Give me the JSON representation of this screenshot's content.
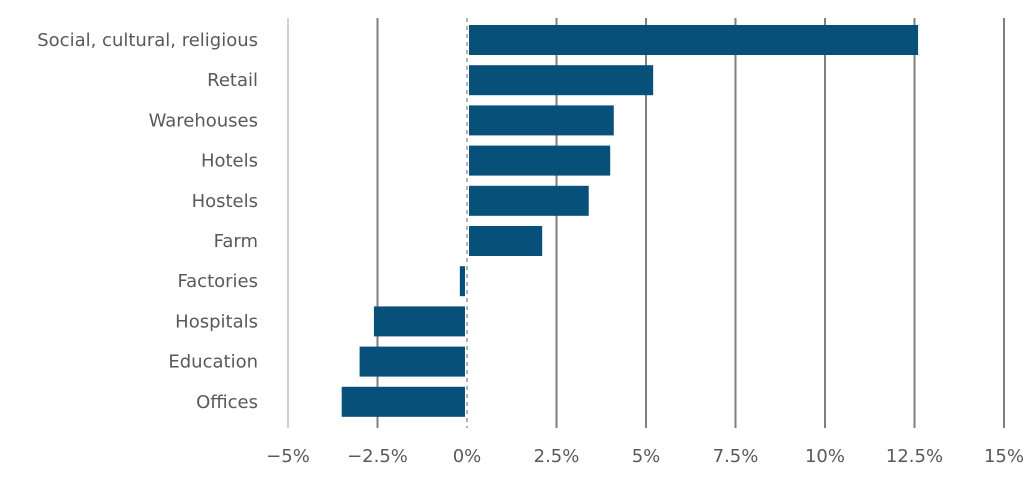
{
  "chart_data": {
    "type": "bar",
    "orientation": "horizontal",
    "categories": [
      "Social, cultural, religious",
      "Retail",
      "Warehouses",
      "Hotels",
      "Hostels",
      "Farm",
      "Factories",
      "Hospitals",
      "Education",
      "Offices"
    ],
    "values": [
      12.6,
      5.2,
      4.1,
      4.0,
      3.4,
      2.1,
      -0.2,
      -2.6,
      -3.0,
      -3.5
    ],
    "xlim": [
      -5,
      15
    ],
    "xticks": [
      -5,
      -2.5,
      0,
      2.5,
      5,
      7.5,
      10,
      12.5,
      15
    ],
    "xtick_labels": [
      "−5%",
      "−2.5%",
      "0%",
      "2.5%",
      "5%",
      "7.5%",
      "10%",
      "12.5%",
      "15%"
    ],
    "title": "",
    "xlabel": "",
    "ylabel": "",
    "grid": true,
    "legend": "none",
    "bar_color": "#06507a",
    "grid_color": "#7f7f7f"
  }
}
